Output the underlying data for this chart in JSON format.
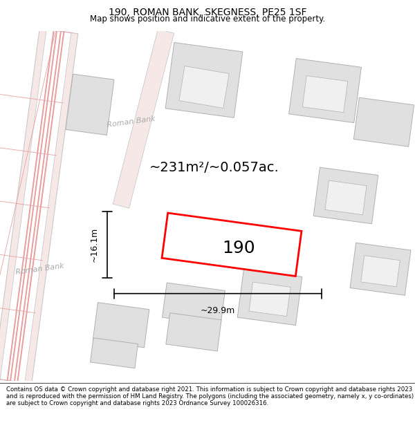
{
  "title": "190, ROMAN BANK, SKEGNESS, PE25 1SF",
  "subtitle": "Map shows position and indicative extent of the property.",
  "area_label": "~231m²/~0.057ac.",
  "plot_label": "190",
  "dim_width": "~29.9m",
  "dim_height": "~16.1m",
  "footer": "Contains OS data © Crown copyright and database right 2021. This information is subject to Crown copyright and database rights 2023 and is reproduced with the permission of HM Land Registry. The polygons (including the associated geometry, namely x, y co-ordinates) are subject to Crown copyright and database rights 2023 Ordnance Survey 100026316.",
  "road_color": "#f7e8e8",
  "road_line_color": "#e8a0a0",
  "road_gray_color": "#c8c8c8",
  "building_color": "#e0e0e0",
  "building_edge_color": "#b0b0b0",
  "plot_fill": "#ffffff",
  "plot_edge_color": "#ff0000",
  "map_bg": "#ffffff",
  "title_fontsize": 10,
  "subtitle_fontsize": 8.5,
  "footer_fontsize": 6.2
}
